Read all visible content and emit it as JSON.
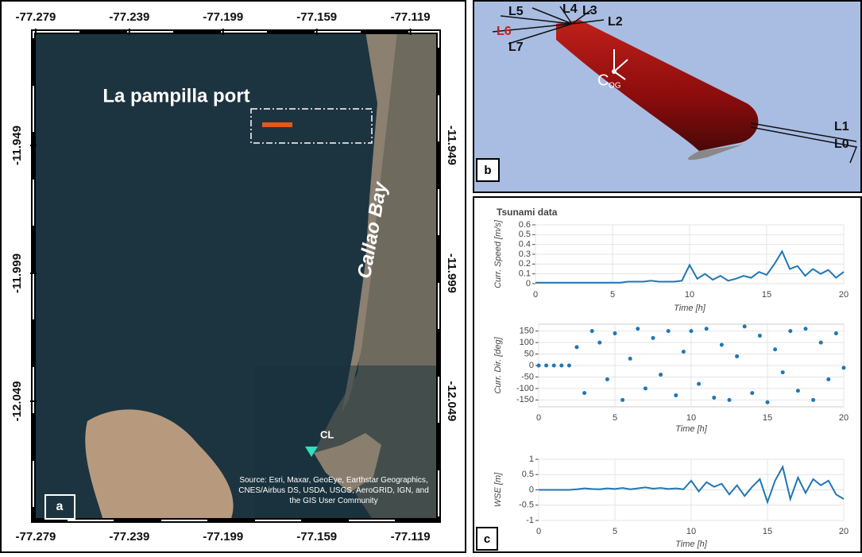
{
  "map": {
    "label": "a",
    "title": "La pampilla port",
    "bay": "Callao Bay",
    "station": "CL",
    "source": "Source: Esri, Maxar, GeoEye, Earthstar Geographics, CNES/Airbus DS, USDA, USGS, AeroGRID, IGN, and the GIS User Community",
    "xlim": [
      -77.28,
      -77.107
    ],
    "xticks": [
      -77.279,
      -77.239,
      -77.199,
      -77.159,
      -77.119
    ],
    "ylim": [
      -12.0956,
      -11.9046
    ],
    "yticks": [
      -11.949,
      -11.999,
      -12.049
    ]
  },
  "render": {
    "label": "b",
    "lines": [
      "L0",
      "L1",
      "L2",
      "L3",
      "L4",
      "L5",
      "L6",
      "L7"
    ],
    "cog": {
      "main": "C",
      "sub": "OG"
    }
  },
  "panel_label": "c",
  "chart_data": [
    {
      "type": "line",
      "title": "Tsunami data",
      "x_label": "Time [h]",
      "y_label": "Curr. Speed [m/s]",
      "color": "#1f77b4",
      "grid": true,
      "x": [
        0,
        0.5,
        1,
        1.5,
        2,
        2.5,
        3,
        3.5,
        4,
        4.5,
        5,
        5.5,
        6,
        6.5,
        7,
        7.5,
        8,
        8.5,
        9,
        9.5,
        10,
        10.5,
        11,
        11.5,
        12,
        12.5,
        13,
        13.5,
        14,
        14.5,
        15,
        15.5,
        16,
        16.5,
        17,
        17.5,
        18,
        18.5,
        19,
        19.5,
        20
      ],
      "values": [
        0.01,
        0.01,
        0.01,
        0.01,
        0.01,
        0.01,
        0.01,
        0.01,
        0.01,
        0.01,
        0.01,
        0.01,
        0.02,
        0.02,
        0.02,
        0.03,
        0.02,
        0.02,
        0.02,
        0.03,
        0.19,
        0.05,
        0.1,
        0.04,
        0.08,
        0.03,
        0.05,
        0.08,
        0.06,
        0.12,
        0.09,
        0.2,
        0.33,
        0.15,
        0.18,
        0.08,
        0.15,
        0.1,
        0.14,
        0.06,
        0.12
      ],
      "xlim": [
        0,
        20
      ],
      "xticks": [
        0,
        5,
        10,
        15,
        20
      ],
      "ylim": [
        0,
        0.6
      ],
      "yticks": [
        0,
        0.1,
        0.2,
        0.3,
        0.4,
        0.5,
        0.6
      ]
    },
    {
      "type": "scatter",
      "x_label": "Time [h]",
      "y_label": "Curr. Dir. [deg]",
      "color": "#1f77b4",
      "grid": true,
      "x": [
        0,
        0.5,
        1,
        1.5,
        2,
        2.5,
        3,
        3.5,
        4,
        4.5,
        5,
        5.5,
        6,
        6.5,
        7,
        7.5,
        8,
        8.5,
        9,
        9.5,
        10,
        10.5,
        11,
        11.5,
        12,
        12.5,
        13,
        13.5,
        14,
        14.5,
        15,
        15.5,
        16,
        16.5,
        17,
        17.5,
        18,
        18.5,
        19,
        19.5,
        20
      ],
      "values": [
        0,
        0,
        0,
        0,
        0,
        80,
        -120,
        150,
        100,
        -60,
        140,
        -150,
        30,
        160,
        -100,
        120,
        -40,
        150,
        -130,
        60,
        150,
        -80,
        160,
        -140,
        90,
        -150,
        40,
        170,
        -120,
        130,
        -160,
        70,
        -30,
        150,
        -110,
        160,
        -150,
        100,
        -60,
        140,
        -10
      ],
      "xlim": [
        0,
        20
      ],
      "xticks": [
        0,
        5,
        10,
        15,
        20
      ],
      "ylim": [
        -180,
        180
      ],
      "yticks": [
        -150,
        -100,
        -50,
        0,
        50,
        100,
        150
      ]
    },
    {
      "type": "line",
      "x_label": "Time [h]",
      "y_label": "WSE [m]",
      "color": "#1f77b4",
      "grid": true,
      "x": [
        0,
        0.5,
        1,
        1.5,
        2,
        2.5,
        3,
        3.5,
        4,
        4.5,
        5,
        5.5,
        6,
        6.5,
        7,
        7.5,
        8,
        8.5,
        9,
        9.5,
        10,
        10.5,
        11,
        11.5,
        12,
        12.5,
        13,
        13.5,
        14,
        14.5,
        15,
        15.5,
        16,
        16.5,
        17,
        17.5,
        18,
        18.5,
        19,
        19.5,
        20
      ],
      "values": [
        0,
        0,
        0,
        0,
        0,
        0.02,
        0.05,
        0.03,
        0.02,
        0.05,
        0.03,
        0.06,
        0.02,
        0.05,
        0.08,
        0.04,
        0.06,
        0.03,
        0.05,
        0.02,
        0.3,
        -0.05,
        0.25,
        0.1,
        0.2,
        -0.15,
        0.15,
        -0.2,
        0.1,
        0.35,
        -0.4,
        0.3,
        0.75,
        -0.3,
        0.4,
        -0.1,
        0.35,
        0.15,
        0.3,
        -0.15,
        -0.3
      ],
      "xlim": [
        0,
        20
      ],
      "xticks": [
        0,
        5,
        10,
        15,
        20
      ],
      "ylim": [
        -1,
        1
      ],
      "yticks": [
        -1,
        -0.5,
        0,
        0.5,
        1
      ]
    }
  ]
}
